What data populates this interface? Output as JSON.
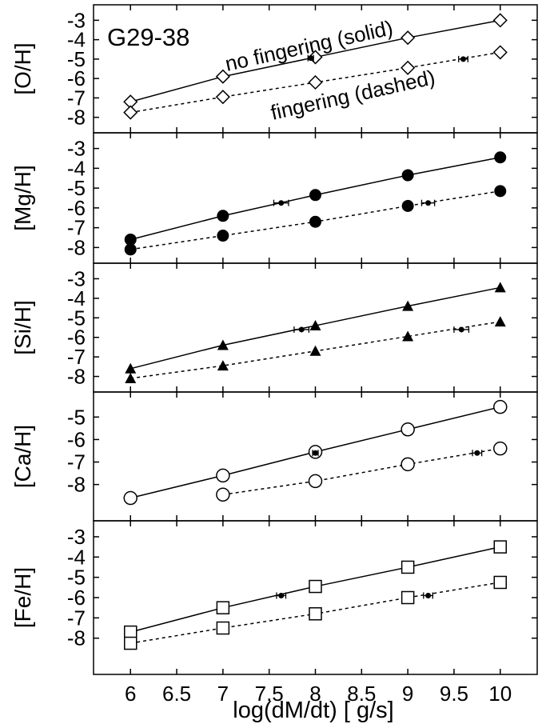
{
  "chart_data": {
    "type": "scatter",
    "title": "G29-38",
    "xlabel": "log(dM/dt) [ g/s]",
    "xlim": [
      5.6,
      10.4
    ],
    "xticks": [
      "6",
      "6.5",
      "7",
      "7.5",
      "8",
      "8.5",
      "9",
      "9.5",
      "10"
    ],
    "grid": false,
    "annotations": [
      "no fingering (solid)",
      "fingering (dashed)"
    ],
    "panels": [
      {
        "ylabel": "[O/H]",
        "ylim": [
          -8.55,
          -2.45
        ],
        "yticks": [
          "-3",
          "-4",
          "-5",
          "-6",
          "-7",
          "-8"
        ],
        "marker": "open-diamond",
        "series": [
          {
            "line": "solid",
            "x": [
              6,
              7,
              8,
              9,
              10
            ],
            "y": [
              -7.2,
              -5.9,
              -4.9,
              -3.9,
              -3.0
            ]
          },
          {
            "line": "dashed",
            "x": [
              6,
              7,
              8,
              9,
              10
            ],
            "y": [
              -7.75,
              -6.95,
              -6.2,
              -5.45,
              -4.65
            ]
          }
        ],
        "observed": [
          {
            "x": 7.95,
            "y": -4.95,
            "xerr": 0.03
          },
          {
            "x": 9.6,
            "y": -5.0,
            "xerr": 0.05
          }
        ]
      },
      {
        "ylabel": "[Mg/H]",
        "ylim": [
          -8.55,
          -2.45
        ],
        "yticks": [
          "-3",
          "-4",
          "-5",
          "-6",
          "-7",
          "-8"
        ],
        "marker": "filled-circle",
        "series": [
          {
            "line": "solid",
            "x": [
              6,
              7,
              8,
              9,
              10
            ],
            "y": [
              -7.6,
              -6.4,
              -5.35,
              -4.35,
              -3.45
            ]
          },
          {
            "line": "dashed",
            "x": [
              6,
              7,
              8,
              9,
              10
            ],
            "y": [
              -8.1,
              -7.4,
              -6.7,
              -5.9,
              -5.15
            ]
          }
        ],
        "observed": [
          {
            "x": 7.63,
            "y": -5.75,
            "xerr": 0.08
          },
          {
            "x": 9.22,
            "y": -5.75,
            "xerr": 0.07
          }
        ]
      },
      {
        "ylabel": "[Si/H]",
        "ylim": [
          -8.55,
          -2.45
        ],
        "yticks": [
          "-3",
          "-4",
          "-5",
          "-6",
          "-7",
          "-8"
        ],
        "marker": "filled-triangle",
        "series": [
          {
            "line": "solid",
            "x": [
              6,
              7,
              8,
              9,
              10
            ],
            "y": [
              -7.6,
              -6.4,
              -5.4,
              -4.4,
              -3.45
            ]
          },
          {
            "line": "dashed",
            "x": [
              6,
              7,
              8,
              9,
              10
            ],
            "y": [
              -8.1,
              -7.45,
              -6.7,
              -5.95,
              -5.2
            ]
          }
        ],
        "observed": [
          {
            "x": 7.85,
            "y": -5.6,
            "xerr": 0.08
          },
          {
            "x": 9.58,
            "y": -5.6,
            "xerr": 0.08
          }
        ]
      },
      {
        "ylabel": "[Ca/H]",
        "ylim": [
          -9.4,
          -4.1
        ],
        "yticks": [
          "-5",
          "-6",
          "-7",
          "-8"
        ],
        "marker": "open-circle",
        "series": [
          {
            "line": "solid",
            "x": [
              6,
              7,
              8,
              9,
              10
            ],
            "y": [
              -8.6,
              -7.6,
              -6.55,
              -5.55,
              -4.55
            ]
          },
          {
            "line": "dashed",
            "x": [
              7,
              8,
              9,
              10
            ],
            "y": [
              -8.45,
              -7.85,
              -7.1,
              -6.4
            ]
          }
        ],
        "observed": [
          {
            "x": 8.0,
            "y": -6.6,
            "xerr": 0.03
          },
          {
            "x": 9.75,
            "y": -6.6,
            "xerr": 0.05
          }
        ]
      },
      {
        "ylabel": "[Fe/H]",
        "ylim": [
          -9.55,
          -2.45
        ],
        "yticks": [
          "-3",
          "-4",
          "-5",
          "-6",
          "-7",
          "-8"
        ],
        "marker": "open-square",
        "series": [
          {
            "line": "solid",
            "x": [
              6,
              7,
              8,
              9,
              10
            ],
            "y": [
              -7.7,
              -6.5,
              -5.45,
              -4.5,
              -3.5
            ]
          },
          {
            "line": "dashed",
            "x": [
              6,
              7,
              8,
              9,
              10
            ],
            "y": [
              -8.25,
              -7.5,
              -6.8,
              -6.0,
              -5.25
            ]
          }
        ],
        "observed": [
          {
            "x": 7.63,
            "y": -5.9,
            "xerr": 0.05
          },
          {
            "x": 9.22,
            "y": -5.9,
            "xerr": 0.05
          }
        ]
      }
    ]
  }
}
